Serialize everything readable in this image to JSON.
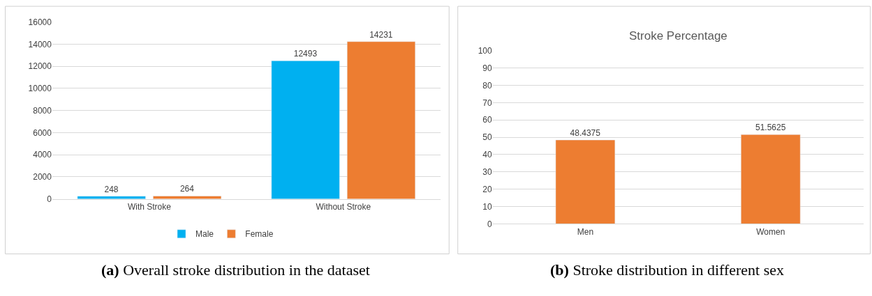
{
  "chart_data": [
    {
      "type": "bar",
      "categories": [
        "With Stroke",
        "Without Stroke"
      ],
      "series": [
        {
          "name": "Male",
          "color": "#00b0f0",
          "values": [
            248,
            12493
          ]
        },
        {
          "name": "Female",
          "color": "#ed7d31",
          "values": [
            264,
            14231
          ]
        }
      ],
      "ylim": [
        0,
        16000
      ],
      "yticks": [
        0,
        2000,
        4000,
        6000,
        8000,
        10000,
        12000,
        14000,
        16000
      ],
      "grid": "y",
      "legend": "bottom",
      "data_labels": true,
      "annotations": [
        "(a) Overall stroke distribution in the dataset"
      ]
    },
    {
      "type": "bar",
      "title": "Stroke Percentage",
      "categories": [
        "Men",
        "Women"
      ],
      "series": [
        {
          "color": "#ed7d31",
          "values": [
            48.4375,
            51.5625
          ]
        }
      ],
      "ylim": [
        0,
        100
      ],
      "yticks": [
        0,
        10,
        20,
        30,
        40,
        50,
        60,
        70,
        80,
        90,
        100
      ],
      "grid": "y",
      "data_labels": true,
      "annotations": [
        "(b) Stroke distribution in different sex"
      ]
    }
  ]
}
